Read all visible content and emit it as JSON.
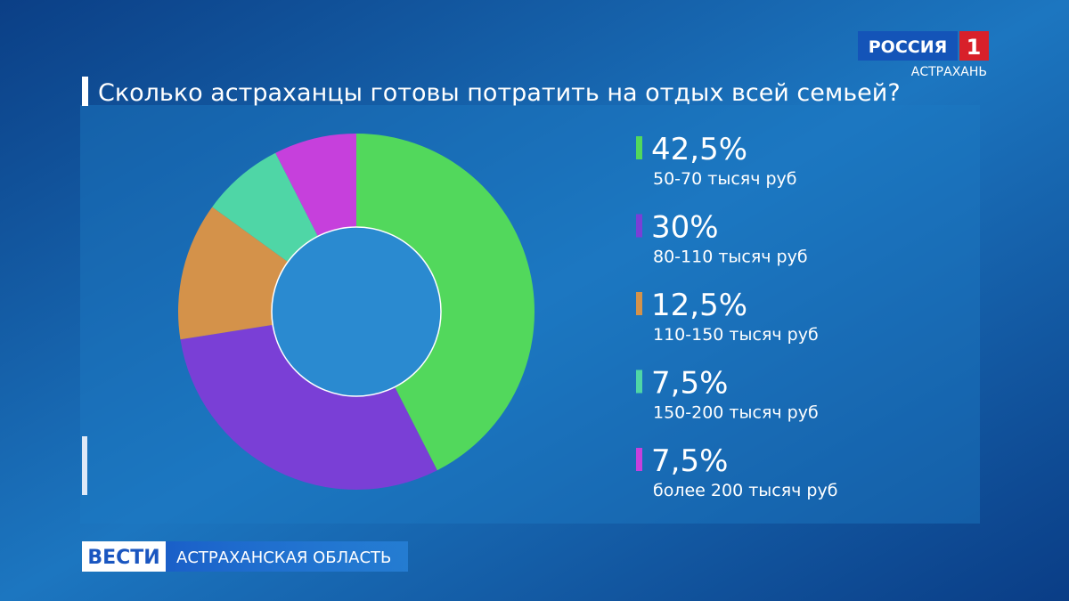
{
  "chart_data": {
    "type": "donut",
    "title": "Сколько астраханцы готовы потратить на отдых всей семьей?",
    "categories": [
      "50-70 тысяч руб",
      "80-110 тысяч руб",
      "110-150 тысяч руб",
      "150-200 тысяч руб",
      "более 200 тысяч руб"
    ],
    "values": [
      42.5,
      30,
      12.5,
      7.5,
      7.5
    ],
    "value_labels": [
      "42,5%",
      "30%",
      "12,5%",
      "7,5%",
      "7,5%"
    ],
    "colors": [
      "#52d85c",
      "#7a3fd6",
      "#d4924a",
      "#4fd6a6",
      "#c640dc"
    ]
  },
  "channel_logo": {
    "name": "РОССИЯ",
    "number": "1",
    "region": "АСТРАХАНЬ"
  },
  "lower_third": {
    "program": "ВЕСТИ",
    "region": "АСТРАХАНСКАЯ ОБЛАСТЬ"
  }
}
